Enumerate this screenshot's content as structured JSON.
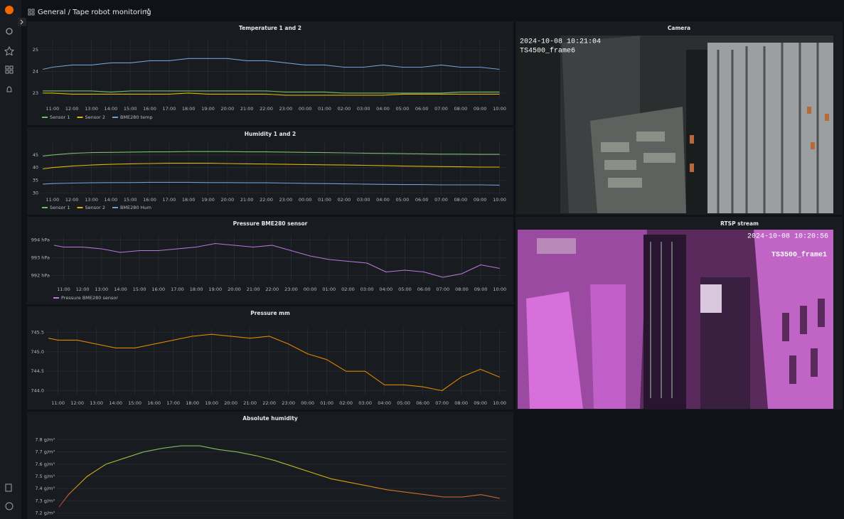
{
  "header": {
    "breadcrumb": "General / Tape robot monitoring"
  },
  "chart_data": [
    {
      "type": "line",
      "title": "Temperature 1 and 2",
      "x": [
        "10:30",
        "11:00",
        "12:00",
        "13:00",
        "14:00",
        "15:00",
        "16:00",
        "17:00",
        "18:00",
        "19:00",
        "20:00",
        "21:00",
        "22:00",
        "23:00",
        "00:00",
        "01:00",
        "02:00",
        "03:00",
        "04:00",
        "05:00",
        "06:00",
        "07:00",
        "08:00",
        "09:00",
        "10:00"
      ],
      "xlim": [
        "10:23",
        "10:23"
      ],
      "xticks": [
        "11:00",
        "12:00",
        "13:00",
        "14:00",
        "15:00",
        "16:00",
        "17:00",
        "18:00",
        "19:00",
        "20:00",
        "21:00",
        "22:00",
        "23:00",
        "00:00",
        "01:00",
        "02:00",
        "03:00",
        "04:00",
        "05:00",
        "06:00",
        "07:00",
        "08:00",
        "09:00",
        "10:00"
      ],
      "ylim": [
        22.7,
        25.5
      ],
      "yticks": [
        23,
        24,
        25
      ],
      "grid": true,
      "legend": "bottom",
      "series": [
        {
          "name": "Sensor 1",
          "color": "#73bf69",
          "values": [
            23.1,
            23.1,
            23.1,
            23.1,
            23.05,
            23.1,
            23.1,
            23.1,
            23.1,
            23.1,
            23.1,
            23.1,
            23.1,
            23.05,
            23.05,
            23.05,
            23.0,
            23.0,
            23.0,
            23.0,
            23.0,
            23.0,
            23.05,
            23.05,
            23.05
          ]
        },
        {
          "name": "Sensor 2",
          "color": "#e0b400",
          "values": [
            23.0,
            23.0,
            22.95,
            22.95,
            22.95,
            22.95,
            22.95,
            22.95,
            23.0,
            22.95,
            22.95,
            22.95,
            22.95,
            22.9,
            22.9,
            22.9,
            22.9,
            22.9,
            22.9,
            22.95,
            22.95,
            22.95,
            22.95,
            22.95,
            22.95
          ]
        },
        {
          "name": "BME280 temp",
          "color": "#6e9fd6",
          "values": [
            24.1,
            24.2,
            24.3,
            24.3,
            24.4,
            24.4,
            24.5,
            24.5,
            24.6,
            24.6,
            24.6,
            24.5,
            24.5,
            24.4,
            24.3,
            24.3,
            24.2,
            24.2,
            24.3,
            24.2,
            24.2,
            24.3,
            24.2,
            24.2,
            24.1
          ]
        }
      ]
    },
    {
      "type": "line",
      "title": "Humidity 1 and 2",
      "x": [
        "10:30",
        "11:00",
        "12:00",
        "13:00",
        "14:00",
        "15:00",
        "16:00",
        "17:00",
        "18:00",
        "19:00",
        "20:00",
        "21:00",
        "22:00",
        "23:00",
        "00:00",
        "01:00",
        "02:00",
        "03:00",
        "04:00",
        "05:00",
        "06:00",
        "07:00",
        "08:00",
        "09:00",
        "10:00"
      ],
      "xlim": [
        "10:23",
        "10:23"
      ],
      "xticks": [
        "11:00",
        "12:00",
        "13:00",
        "14:00",
        "15:00",
        "16:00",
        "17:00",
        "18:00",
        "19:00",
        "20:00",
        "21:00",
        "22:00",
        "23:00",
        "00:00",
        "01:00",
        "02:00",
        "03:00",
        "04:00",
        "05:00",
        "06:00",
        "07:00",
        "08:00",
        "09:00",
        "10:00"
      ],
      "ylim": [
        29,
        50
      ],
      "yticks": [
        30,
        35,
        40,
        45
      ],
      "grid": true,
      "legend": "bottom",
      "series": [
        {
          "name": "Sensor 1",
          "color": "#73bf69",
          "values": [
            44.5,
            45.0,
            45.6,
            45.9,
            46.0,
            46.1,
            46.2,
            46.2,
            46.3,
            46.3,
            46.3,
            46.2,
            46.2,
            46.1,
            46.0,
            45.9,
            45.8,
            45.7,
            45.6,
            45.5,
            45.4,
            45.3,
            45.3,
            45.2,
            45.2
          ]
        },
        {
          "name": "Sensor 2",
          "color": "#e0b400",
          "values": [
            39.5,
            40.0,
            40.6,
            41.0,
            41.3,
            41.5,
            41.6,
            41.7,
            41.7,
            41.7,
            41.6,
            41.5,
            41.4,
            41.3,
            41.2,
            41.1,
            41.0,
            40.9,
            40.8,
            40.6,
            40.5,
            40.4,
            40.3,
            40.2,
            40.2
          ]
        },
        {
          "name": "BME280 Hum",
          "color": "#6e9fd6",
          "values": [
            33.5,
            33.7,
            33.9,
            34.0,
            34.1,
            34.1,
            34.2,
            34.2,
            34.2,
            34.1,
            34.1,
            34.0,
            34.0,
            33.9,
            33.8,
            33.7,
            33.6,
            33.5,
            33.4,
            33.3,
            33.3,
            33.2,
            33.2,
            33.2,
            33.1
          ]
        }
      ]
    },
    {
      "type": "line",
      "title": "Pressure BME280 sensor",
      "x": [
        "10:30",
        "11:00",
        "12:00",
        "13:00",
        "14:00",
        "15:00",
        "16:00",
        "17:00",
        "18:00",
        "19:00",
        "20:00",
        "21:00",
        "22:00",
        "23:00",
        "00:00",
        "01:00",
        "02:00",
        "03:00",
        "04:00",
        "05:00",
        "06:00",
        "07:00",
        "08:00",
        "09:00",
        "10:00"
      ],
      "xlim": [
        "10:23",
        "10:23"
      ],
      "xticks": [
        "11:00",
        "12:00",
        "13:00",
        "14:00",
        "15:00",
        "16:00",
        "17:00",
        "18:00",
        "19:00",
        "20:00",
        "21:00",
        "22:00",
        "23:00",
        "00:00",
        "01:00",
        "02:00",
        "03:00",
        "04:00",
        "05:00",
        "06:00",
        "07:00",
        "08:00",
        "09:00",
        "10:00"
      ],
      "ylim": [
        991.7,
        994.3
      ],
      "yticks": [
        {
          "value": 992,
          "label": "992 hPa"
        },
        {
          "value": 993,
          "label": "993 hPa"
        },
        {
          "value": 994,
          "label": "994 hPa"
        }
      ],
      "grid": true,
      "legend": "bottom",
      "series": [
        {
          "name": "Pressure BME280 sensor",
          "color": "#b877d9",
          "values": [
            993.7,
            993.6,
            993.6,
            993.5,
            993.3,
            993.4,
            993.4,
            993.5,
            993.6,
            993.8,
            993.7,
            993.6,
            993.7,
            993.4,
            993.1,
            992.9,
            992.8,
            992.7,
            992.2,
            992.3,
            992.2,
            991.9,
            992.1,
            992.6,
            992.4
          ]
        }
      ]
    },
    {
      "type": "line",
      "title": "Pressure mm",
      "x": [
        "10:30",
        "11:00",
        "12:00",
        "13:00",
        "14:00",
        "15:00",
        "16:00",
        "17:00",
        "18:00",
        "19:00",
        "20:00",
        "21:00",
        "22:00",
        "23:00",
        "00:00",
        "01:00",
        "02:00",
        "03:00",
        "04:00",
        "05:00",
        "06:00",
        "07:00",
        "08:00",
        "09:00",
        "10:00"
      ],
      "xlim": [
        "10:23",
        "10:23"
      ],
      "xticks": [
        "11:00",
        "12:00",
        "13:00",
        "14:00",
        "15:00",
        "16:00",
        "17:00",
        "18:00",
        "19:00",
        "20:00",
        "21:00",
        "22:00",
        "23:00",
        "00:00",
        "01:00",
        "02:00",
        "03:00",
        "04:00",
        "05:00",
        "06:00",
        "07:00",
        "08:00",
        "09:00",
        "10:00"
      ],
      "ylim": [
        743.9,
        745.6
      ],
      "yticks": [
        {
          "value": 744,
          "label": "744.0"
        },
        744.5,
        {
          "value": 745,
          "label": "745.0"
        },
        745.5
      ],
      "grid": true,
      "series": [
        {
          "color": "#e08400",
          "values": [
            745.35,
            745.3,
            745.3,
            745.2,
            745.1,
            745.1,
            745.2,
            745.3,
            745.4,
            745.45,
            745.4,
            745.35,
            745.4,
            745.2,
            744.95,
            744.8,
            744.5,
            744.5,
            744.15,
            744.15,
            744.1,
            744.0,
            744.35,
            744.55,
            744.35
          ]
        }
      ]
    },
    {
      "type": "line",
      "title": "Absolute humidity",
      "x": [
        "10:30",
        "11:00",
        "12:00",
        "13:00",
        "14:00",
        "15:00",
        "16:00",
        "17:00",
        "18:00",
        "19:00",
        "20:00",
        "21:00",
        "22:00",
        "23:00",
        "00:00",
        "01:00",
        "02:00",
        "03:00",
        "04:00",
        "05:00",
        "06:00",
        "07:00",
        "08:00",
        "09:00",
        "10:00"
      ],
      "xlim": [
        "10:23",
        "10:23"
      ],
      "ylim": [
        7.15,
        7.85
      ],
      "yticks": [
        {
          "value": 7.2,
          "label": "7.2 g/m³"
        },
        {
          "value": 7.3,
          "label": "7.3 g/m³"
        },
        {
          "value": 7.4,
          "label": "7.4 g/m³"
        },
        {
          "value": 7.5,
          "label": "7.5 g/m³"
        },
        {
          "value": 7.6,
          "label": "7.6 g/m³"
        },
        {
          "value": 7.7,
          "label": "7.7 g/m³"
        },
        {
          "value": 7.8,
          "label": "7.8 g/m³"
        }
      ],
      "grid": true,
      "gradient": [
        "#c4314b",
        "#e0b400",
        "#73bf69"
      ],
      "series": [
        {
          "color": "#e0b400",
          "values": [
            7.25,
            7.35,
            7.5,
            7.6,
            7.65,
            7.7,
            7.73,
            7.75,
            7.75,
            7.72,
            7.7,
            7.67,
            7.63,
            7.58,
            7.53,
            7.48,
            7.45,
            7.42,
            7.39,
            7.37,
            7.35,
            7.33,
            7.33,
            7.35,
            7.32
          ]
        }
      ]
    }
  ],
  "cameras": [
    {
      "title": "Camera",
      "timestamp": "2024-10-08 10:21:04",
      "label": "TS4500_frame6"
    },
    {
      "title": "RTSP stream",
      "timestamp": "2024-10-08 10:20:56",
      "label": "TS3500_frame1"
    }
  ]
}
